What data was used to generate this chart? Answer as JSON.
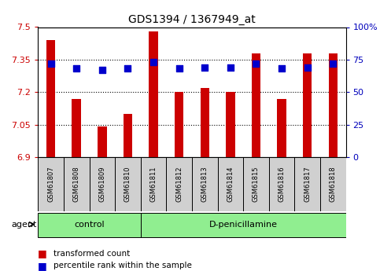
{
  "title": "GDS1394 / 1367949_at",
  "samples": [
    "GSM61807",
    "GSM61808",
    "GSM61809",
    "GSM61810",
    "GSM61811",
    "GSM61812",
    "GSM61813",
    "GSM61814",
    "GSM61815",
    "GSM61816",
    "GSM61817",
    "GSM61818"
  ],
  "transformed_count": [
    7.44,
    7.17,
    7.04,
    7.1,
    7.48,
    7.2,
    7.22,
    7.2,
    7.38,
    7.17,
    7.38,
    7.38
  ],
  "percentile_rank": [
    72,
    68,
    67,
    68,
    73,
    68,
    69,
    69,
    72,
    68,
    69,
    72
  ],
  "ylim_left": [
    6.9,
    7.5
  ],
  "ylim_right": [
    0,
    100
  ],
  "yticks_left": [
    6.9,
    7.05,
    7.2,
    7.35,
    7.5
  ],
  "ytick_labels_left": [
    "6.9",
    "7.05",
    "7.2",
    "7.35",
    "7.5"
  ],
  "yticks_right": [
    0,
    25,
    50,
    75,
    100
  ],
  "ytick_labels_right": [
    "0",
    "25",
    "50",
    "75",
    "100%"
  ],
  "bar_color": "#CC0000",
  "dot_color": "#0000CC",
  "bar_width": 0.35,
  "dot_size": 28,
  "grid_color": "black",
  "control_count": 4,
  "group_label_control": "control",
  "group_label_treatment": "D-penicillamine",
  "group_color": "#90EE90",
  "tick_box_color": "#d0d0d0",
  "agent_label": "agent",
  "legend_bar_label": "transformed count",
  "legend_dot_label": "percentile rank within the sample",
  "title_color": "black",
  "title_fontsize": 10,
  "left_axis_color": "#CC0000",
  "right_axis_color": "#0000BB"
}
